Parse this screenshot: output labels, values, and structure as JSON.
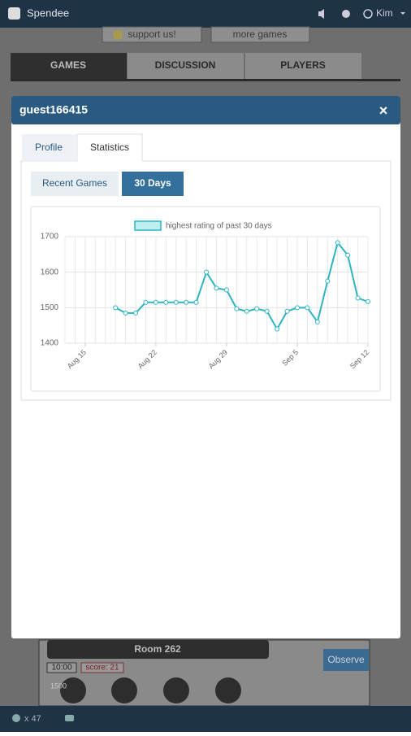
{
  "top_bar": {
    "app": "Spendee",
    "user": "Kim"
  },
  "background": {
    "buttons": [
      "support us!",
      "more games"
    ],
    "tabs": [
      "GAMES",
      "DISCUSSION",
      "PLAYERS"
    ],
    "room": {
      "title": "Room 262",
      "action": "Observe",
      "clock": "10:00",
      "score": "score: 21",
      "rating": "1500"
    }
  },
  "bottom_bar": {
    "count": "x 47"
  },
  "modal": {
    "title": "guest166415",
    "close": "×",
    "tabs": [
      "Profile",
      "Statistics"
    ],
    "subtabs": [
      "Recent Games",
      "30 Days"
    ]
  },
  "chart_data": {
    "type": "line",
    "categories": [
      null,
      null,
      "Aug 15",
      null,
      null,
      null,
      null,
      null,
      null,
      "Aug 22",
      null,
      null,
      null,
      null,
      null,
      null,
      "Aug 29",
      null,
      null,
      null,
      null,
      null,
      null,
      "Sep 5",
      null,
      null,
      null,
      null,
      null,
      null,
      "Sep 12"
    ],
    "series": [
      {
        "name": "highest rating of past 30 days",
        "color": "#2cb5c0",
        "values": [
          null,
          null,
          null,
          null,
          null,
          1500,
          1485,
          1485,
          1515,
          1515,
          1515,
          1515,
          1515,
          1515,
          1600,
          1555,
          1550,
          1497,
          1490,
          1497,
          1490,
          1440,
          1490,
          1500,
          1500,
          1460,
          1575,
          1683,
          1648,
          1527,
          1517
        ]
      }
    ],
    "ylim": [
      1400,
      1700
    ],
    "yticks": [
      1400,
      1500,
      1600,
      1700
    ],
    "grid": true,
    "legend": "top"
  }
}
